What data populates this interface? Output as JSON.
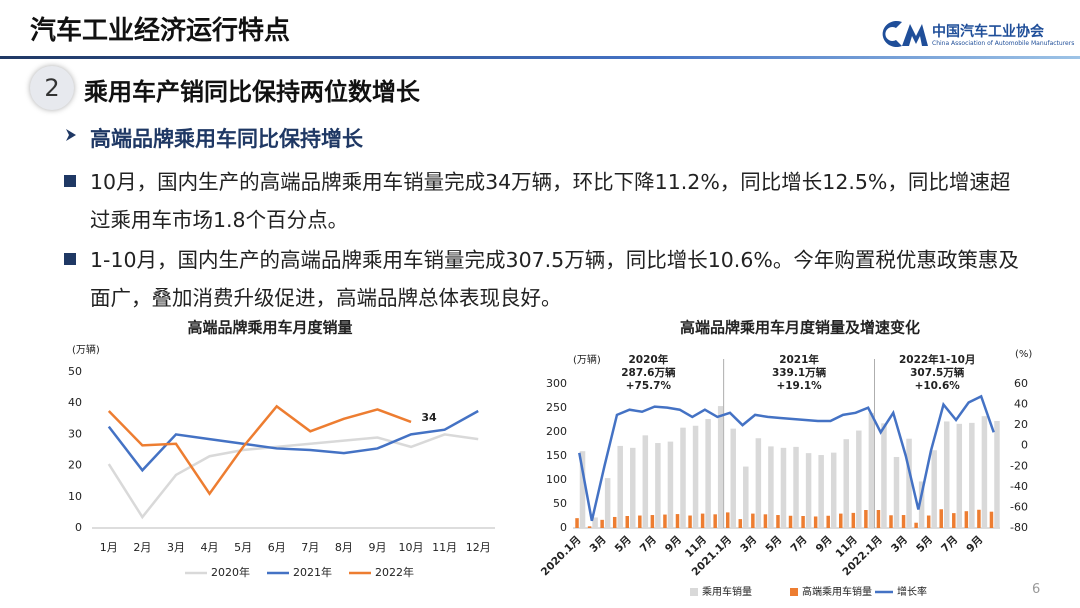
{
  "header": {
    "title": "汽车工业经济运行特点",
    "org_cn": "中国汽车工业协会",
    "org_en": "China Association of Automobile Manufacturers"
  },
  "section": {
    "number": "2",
    "title": "乘用车产销同比保持两位数增长"
  },
  "subheading": "高端品牌乘用车同比保持增长",
  "paragraphs": [
    "10月，国内生产的高端品牌乘用车销量完成34万辆，环比下降11.2%，同比增长12.5%，同比增速超过乘用车市场1.8个百分点。",
    "1-10月，国内生产的高端品牌乘用车销量完成307.5万辆，同比增长10.6%。今年购置税优惠政策惠及面广，叠加消费升级促进，高端品牌总体表现良好。"
  ],
  "page_number": "6",
  "chart_data": [
    {
      "type": "line",
      "title": "高端品牌乘用车月度销量",
      "y_label": "(万辆)",
      "categories": [
        "1月",
        "2月",
        "3月",
        "4月",
        "5月",
        "6月",
        "7月",
        "8月",
        "9月",
        "10月",
        "11月",
        "12月"
      ],
      "ylim": [
        0,
        50
      ],
      "yticks": [
        0,
        10,
        20,
        30,
        40,
        50
      ],
      "legend": "bottom",
      "series": [
        {
          "name": "2020年",
          "color": "#d9d9d9",
          "values": [
            20.5,
            3.5,
            17,
            23,
            25,
            26,
            27,
            28,
            29,
            26,
            30,
            28.5
          ]
        },
        {
          "name": "2021年",
          "color": "#4472c4",
          "values": [
            32.5,
            18.5,
            30,
            28.5,
            27,
            25.5,
            25,
            24,
            25.5,
            30,
            31.5,
            37.5
          ]
        },
        {
          "name": "2022年",
          "color": "#ed7d31",
          "values": [
            37.5,
            26.5,
            27,
            11,
            26,
            39,
            31,
            35,
            38,
            34,
            null,
            null
          ],
          "value_labels": [
            null,
            null,
            null,
            null,
            null,
            null,
            null,
            null,
            null,
            "34",
            null,
            null
          ]
        }
      ]
    },
    {
      "type": "combo",
      "title": "高端品牌乘用车月度销量及增速变化",
      "y_label": "(万辆)",
      "y2_label": "(%)",
      "categories": [
        "2020.1月",
        null,
        "3月",
        null,
        "5月",
        null,
        "7月",
        null,
        "9月",
        null,
        "11月",
        null,
        "2021.1月",
        null,
        "3月",
        null,
        "5月",
        null,
        "7月",
        null,
        "9月",
        null,
        "11月",
        null,
        "2022.1月",
        null,
        "3月",
        null,
        "5月",
        null,
        "7月",
        null,
        "9月",
        null
      ],
      "ylim": [
        0,
        300
      ],
      "yticks": [
        0,
        50,
        100,
        150,
        200,
        250,
        300
      ],
      "y2lim": [
        -80,
        60
      ],
      "y2ticks": [
        -80,
        -60,
        -40,
        -20,
        0,
        20,
        40,
        60
      ],
      "legend": "bottom",
      "annotations": [
        {
          "lines": [
            "2020年",
            "287.6万辆",
            "+75.7%"
          ]
        },
        {
          "lines": [
            "2021年",
            "339.1万辆",
            "+19.1%"
          ]
        },
        {
          "lines": [
            "2022年1-10月",
            "307.5万辆",
            "+10.6%"
          ]
        }
      ],
      "series": [
        {
          "name": "乘用车销量",
          "type": "bar",
          "color": "#d9d9d9",
          "values": [
            160,
            22,
            104,
            171,
            167,
            193,
            177,
            180,
            209,
            213,
            227,
            254,
            207,
            128,
            187,
            170,
            167,
            169,
            156,
            152,
            157,
            185,
            203,
            240,
            218,
            148,
            186,
            97,
            162,
            222,
            217,
            219,
            233,
            223
          ]
        },
        {
          "name": "高端乘用车销量",
          "type": "bar",
          "color": "#ed7d31",
          "values": [
            20.5,
            3.5,
            17,
            23,
            25,
            26,
            27,
            28,
            29,
            26,
            30,
            28.5,
            32.5,
            18.5,
            30,
            28.5,
            27,
            25.5,
            25,
            24,
            25.5,
            30,
            31.5,
            37.5,
            37.5,
            26.5,
            27,
            11,
            26,
            39,
            31,
            35,
            38,
            34
          ]
        },
        {
          "name": "增长率",
          "type": "line",
          "axis": "y2",
          "color": "#4472c4",
          "values": [
            -7,
            -73,
            -20,
            30,
            35,
            33,
            38,
            37,
            35,
            28,
            35,
            28,
            32,
            20,
            30,
            28,
            27,
            26,
            25,
            24,
            24,
            30,
            32,
            37,
            13,
            32,
            -10,
            -62,
            -5,
            40,
            25,
            42,
            48,
            13
          ]
        }
      ]
    }
  ]
}
